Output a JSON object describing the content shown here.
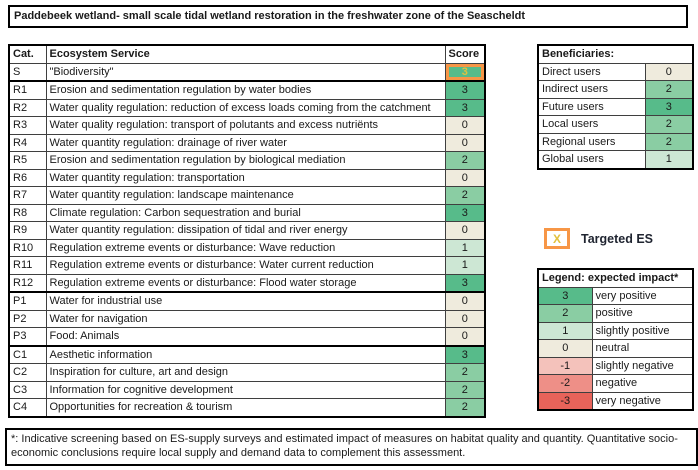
{
  "title": "Paddebeek wetland- small scale tidal wetland restoration in the freshwater zone of the Seascheldt",
  "main_table": {
    "headers": [
      "Cat.",
      "Ecosystem Service",
      "Score"
    ],
    "rows": [
      {
        "cat": "S",
        "service": "\"Biodiversity\"",
        "score": 3,
        "targeted": true,
        "section_end": true
      },
      {
        "cat": "R1",
        "service": "Erosion and sedimentation regulation by water bodies",
        "score": 3
      },
      {
        "cat": "R2",
        "service": "Water quality regulation: reduction of excess loads coming from the catchment",
        "score": 3
      },
      {
        "cat": "R3",
        "service": "Water quality regulation: transport of polutants and excess nutriënts",
        "score": 0
      },
      {
        "cat": "R4",
        "service": "Water quantity regulation: drainage of river water",
        "score": 0
      },
      {
        "cat": "R5",
        "service": "Erosion and sedimentation regulation by biological mediation",
        "score": 2
      },
      {
        "cat": "R6",
        "service": "Water quantity regulation: transportation",
        "score": 0
      },
      {
        "cat": "R7",
        "service": "Water quantity regulation: landscape maintenance",
        "score": 2
      },
      {
        "cat": "R8",
        "service": "Climate regulation: Carbon sequestration and burial",
        "score": 3
      },
      {
        "cat": "R9",
        "service": "Water quantity regulation: dissipation of tidal and river energy",
        "score": 0
      },
      {
        "cat": "R10",
        "service": "Regulation extreme events or disturbance: Wave reduction",
        "score": 1
      },
      {
        "cat": "R11",
        "service": "Regulation extreme events or disturbance: Water current reduction",
        "score": 1
      },
      {
        "cat": "R12",
        "service": "Regulation extreme events or disturbance: Flood water storage",
        "score": 3,
        "section_end": true
      },
      {
        "cat": "P1",
        "service": "Water for industrial use",
        "score": 0
      },
      {
        "cat": "P2",
        "service": "Water for navigation",
        "score": 0
      },
      {
        "cat": "P3",
        "service": "Food: Animals",
        "score": 0,
        "section_end": true
      },
      {
        "cat": "C1",
        "service": "Aesthetic information",
        "score": 3
      },
      {
        "cat": "C2",
        "service": "Inspiration for culture, art and design",
        "score": 2
      },
      {
        "cat": "C3",
        "service": "Information for cognitive development",
        "score": 2
      },
      {
        "cat": "C4",
        "service": "Opportunities for recreation & tourism",
        "score": 2
      }
    ]
  },
  "beneficiaries": {
    "title": "Beneficiaries:",
    "rows": [
      {
        "label": "Direct users",
        "score": 0
      },
      {
        "label": "Indirect users",
        "score": 2
      },
      {
        "label": "Future users",
        "score": 3
      },
      {
        "label": "Local users",
        "score": 2
      },
      {
        "label": "Regional users",
        "score": 2
      },
      {
        "label": "Global users",
        "score": 1
      }
    ]
  },
  "targeted_es": {
    "symbol": "X",
    "label": "Targeted ES"
  },
  "legend": {
    "title": "Legend: expected  impact*",
    "rows": [
      {
        "score": 3,
        "label": "very positive"
      },
      {
        "score": 2,
        "label": "positive"
      },
      {
        "score": 1,
        "label": "slightly positive"
      },
      {
        "score": 0,
        "label": "neutral"
      },
      {
        "score": -1,
        "label": "slightly negative"
      },
      {
        "score": -2,
        "label": "negative"
      },
      {
        "score": -3,
        "label": "very negative"
      }
    ]
  },
  "footnote": "*: Indicative screening based on ES-supply surveys and estimated impact of measures on habitat quality and quantity. Quantitative socio-economic conclusions require local supply and demand data to complement this assessment.",
  "colors": {
    "3": "#57bb8a",
    "2": "#8acda3",
    "1": "#cde7d4",
    "0": "#efebdd",
    "-1": "#f4c2bb",
    "-2": "#ee8f87",
    "-3": "#e8635a",
    "targeted_border": "#f79646",
    "targeted_text": "#e2c13d"
  }
}
